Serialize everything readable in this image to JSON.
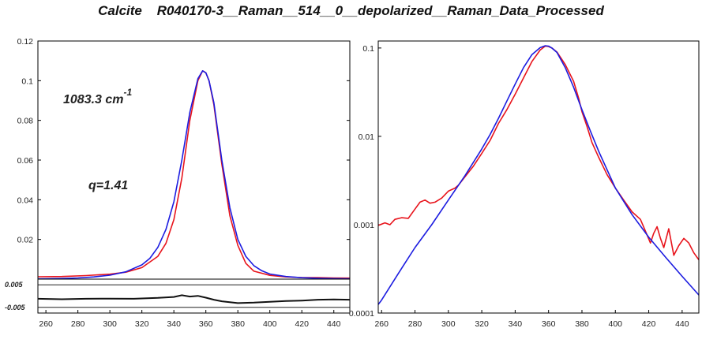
{
  "title": "Calcite    R040170-3__Raman__514__0__depolarized__Raman_Data_Processed",
  "colors": {
    "data": "#e8141c",
    "fit": "#1c1ce0",
    "residual": "#111111",
    "axis": "#000000"
  },
  "chart_data": [
    {
      "type": "line",
      "panel": "linear",
      "xlim": [
        255,
        450
      ],
      "ylim": [
        0,
        0.12
      ],
      "x_ticks": [
        "260",
        "280",
        "300",
        "320",
        "340",
        "360",
        "380",
        "400",
        "420",
        "440"
      ],
      "y_ticks": [
        "0.02",
        "0.04",
        "0.06",
        "0.08",
        "0.1",
        "0.12"
      ],
      "annotations": {
        "peak": "1083.3 cm",
        "peak_sup": "-1",
        "q": "q=1.41"
      },
      "series": [
        {
          "color": "#e8141c",
          "x": [
            255,
            270,
            285,
            300,
            310,
            320,
            330,
            335,
            340,
            345,
            350,
            355,
            358,
            360,
            362,
            365,
            370,
            375,
            380,
            385,
            390,
            400,
            410,
            420,
            430,
            440,
            450
          ],
          "y": [
            0.0012,
            0.0013,
            0.0018,
            0.0025,
            0.0035,
            0.0058,
            0.0115,
            0.018,
            0.03,
            0.051,
            0.08,
            0.1,
            0.105,
            0.104,
            0.1,
            0.088,
            0.058,
            0.032,
            0.017,
            0.008,
            0.004,
            0.0019,
            0.0011,
            0.0008,
            0.0008,
            0.0006,
            0.0005
          ]
        },
        {
          "color": "#1c1ce0",
          "x": [
            255,
            260,
            270,
            280,
            290,
            300,
            310,
            320,
            325,
            330,
            335,
            340,
            345,
            350,
            355,
            358,
            360,
            362,
            365,
            370,
            375,
            380,
            385,
            390,
            395,
            400,
            410,
            420,
            430,
            440,
            450
          ],
          "y": [
            0.00013,
            0.00018,
            0.00033,
            0.0006,
            0.0011,
            0.002,
            0.0037,
            0.0072,
            0.0105,
            0.016,
            0.025,
            0.039,
            0.06,
            0.084,
            0.101,
            0.105,
            0.104,
            0.1,
            0.089,
            0.06,
            0.036,
            0.02,
            0.0115,
            0.0068,
            0.0042,
            0.0026,
            0.0013,
            0.00072,
            0.00043,
            0.00026,
            0.00016
          ]
        }
      ]
    },
    {
      "type": "line",
      "panel": "residual",
      "ylim": [
        -0.0075,
        0.0075
      ],
      "y_ticks": [
        "0.005",
        "-0.005"
      ],
      "series": [
        {
          "color": "#111111",
          "x": [
            255,
            270,
            285,
            300,
            315,
            330,
            340,
            345,
            350,
            355,
            360,
            365,
            370,
            380,
            390,
            400,
            410,
            420,
            430,
            440,
            450
          ],
          "y": [
            -0.0012,
            -0.0014,
            -0.0012,
            -0.0011,
            -0.0012,
            -0.0008,
            -0.0004,
            0.0004,
            -0.0002,
            0.0001,
            -0.0007,
            -0.0016,
            -0.0023,
            -0.0031,
            -0.0029,
            -0.0025,
            -0.0022,
            -0.002,
            -0.0016,
            -0.0015,
            -0.0016
          ]
        }
      ]
    },
    {
      "type": "line",
      "panel": "log",
      "log_y": true,
      "xlim": [
        258,
        450
      ],
      "ylim": [
        0.0001,
        0.12
      ],
      "x_ticks": [
        "260",
        "280",
        "300",
        "320",
        "340",
        "360",
        "380",
        "400",
        "420",
        "440"
      ],
      "y_ticks": [
        "0.0001",
        "0.001",
        "0.01",
        "0.1"
      ],
      "series": [
        {
          "color": "#e8141c",
          "x": [
            258,
            262,
            265,
            268,
            272,
            276,
            280,
            283,
            286,
            289,
            292,
            296,
            300,
            304,
            306,
            310,
            315,
            320,
            325,
            330,
            335,
            340,
            345,
            350,
            355,
            358,
            360,
            362,
            365,
            370,
            375,
            378,
            380,
            383,
            386,
            390,
            395,
            400,
            405,
            410,
            415,
            418,
            421,
            423,
            425,
            427,
            429,
            432,
            435,
            438,
            441,
            444,
            447,
            450
          ],
          "y": [
            0.00098,
            0.00105,
            0.001,
            0.00115,
            0.0012,
            0.00118,
            0.0015,
            0.0018,
            0.0019,
            0.00175,
            0.0018,
            0.002,
            0.0024,
            0.0026,
            0.0028,
            0.0035,
            0.0046,
            0.0064,
            0.009,
            0.014,
            0.02,
            0.03,
            0.046,
            0.07,
            0.095,
            0.105,
            0.104,
            0.1,
            0.09,
            0.065,
            0.042,
            0.027,
            0.019,
            0.013,
            0.0085,
            0.0058,
            0.0037,
            0.0026,
            0.0019,
            0.0014,
            0.00115,
            0.00085,
            0.00062,
            0.0008,
            0.00095,
            0.0007,
            0.00055,
            0.0009,
            0.00045,
            0.00058,
            0.0007,
            0.00062,
            0.00048,
            0.0004
          ]
        },
        {
          "color": "#1c1ce0",
          "x": [
            258,
            260,
            270,
            280,
            290,
            300,
            310,
            320,
            325,
            330,
            335,
            340,
            345,
            350,
            355,
            358,
            360,
            362,
            365,
            370,
            375,
            380,
            385,
            390,
            395,
            400,
            410,
            420,
            430,
            440,
            450
          ],
          "y": [
            0.000125,
            0.00014,
            0.00028,
            0.00055,
            0.001,
            0.0019,
            0.0036,
            0.0072,
            0.0105,
            0.016,
            0.025,
            0.039,
            0.06,
            0.084,
            0.101,
            0.106,
            0.105,
            0.1,
            0.089,
            0.06,
            0.036,
            0.02,
            0.0115,
            0.0068,
            0.0042,
            0.0026,
            0.0013,
            0.00072,
            0.00043,
            0.00026,
            0.00016
          ]
        }
      ]
    }
  ]
}
